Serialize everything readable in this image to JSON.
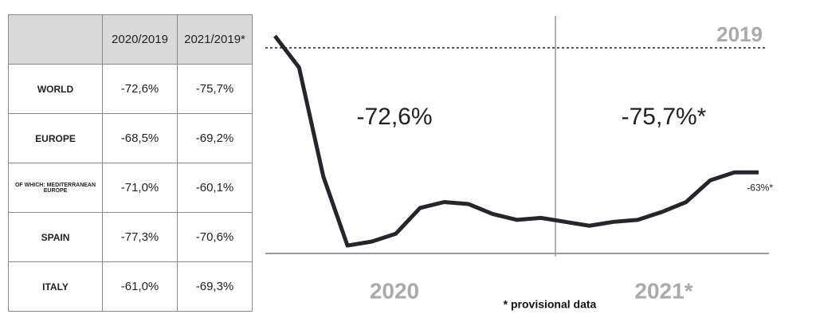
{
  "table": {
    "header": [
      "2020/2019",
      "2021/2019*"
    ],
    "rows": [
      {
        "label": "WORLD",
        "cells": [
          "-72,6%",
          "-75,7%"
        ]
      },
      {
        "label": "EUROPE",
        "cells": [
          "-68,5%",
          "-69,2%"
        ]
      },
      {
        "label": "OF WHICH: MEDITERRANEAN EUROPE",
        "cells": [
          "-71,0%",
          "-60,1%"
        ]
      },
      {
        "label": "SPAIN",
        "cells": [
          "-77,3%",
          "-70,6%"
        ]
      },
      {
        "label": "ITALY",
        "cells": [
          "-61,0%",
          "-69,3%"
        ]
      }
    ]
  },
  "chart_data": {
    "type": "line",
    "categories": [
      null,
      null,
      null,
      null,
      null,
      null,
      null,
      null,
      null,
      null,
      null,
      null,
      null,
      null,
      null,
      null,
      null,
      null,
      null,
      null,
      null
    ],
    "values": [
      6,
      -10,
      -65,
      -100,
      -98,
      -94,
      -81,
      -78,
      -79,
      -84,
      -87,
      -86,
      -88,
      -90,
      -88,
      -87,
      -83,
      -78,
      -67,
      -63,
      -63
    ],
    "value_labels": [
      null,
      null,
      null,
      null,
      null,
      null,
      null,
      null,
      null,
      null,
      null,
      null,
      null,
      null,
      null,
      null,
      null,
      null,
      null,
      null,
      "-63%*"
    ],
    "color": "#24252d",
    "ylim": [
      -104,
      10
    ],
    "reference": {
      "value": 0,
      "label": "2019"
    },
    "periods": [
      "2020",
      "2021*"
    ],
    "annotations": [
      "-72,6%",
      "-75,7%*"
    ],
    "footnote": "* provisional data"
  }
}
